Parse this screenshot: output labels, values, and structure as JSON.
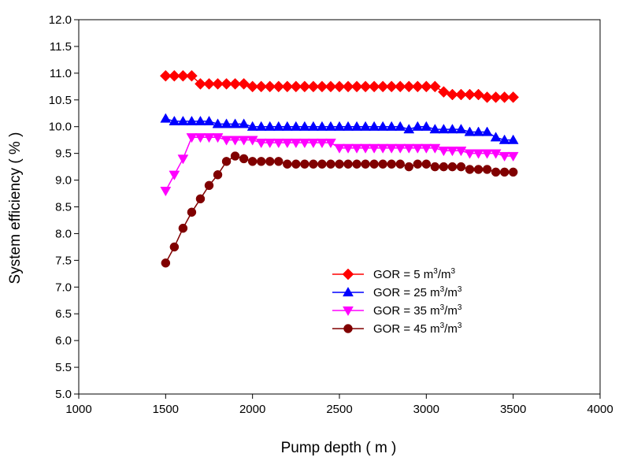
{
  "chart_data": {
    "type": "line",
    "xlabel": "Pump depth ( m )",
    "ylabel": "System efficiency ( % )",
    "xlim": [
      1000,
      4000
    ],
    "ylim": [
      5.0,
      12.0
    ],
    "xticks": [
      1000,
      1500,
      2000,
      2500,
      3000,
      3500,
      4000
    ],
    "yticks": [
      5.0,
      5.5,
      6.0,
      6.5,
      7.0,
      7.5,
      8.0,
      8.5,
      9.0,
      9.5,
      10.0,
      10.5,
      11.0,
      11.5,
      12.0
    ],
    "xtick_labels": [
      "1000",
      "1500",
      "2000",
      "2500",
      "3000",
      "3500",
      "4000"
    ],
    "ytick_labels": [
      "5.0",
      "5.5",
      "6.0",
      "6.5",
      "7.0",
      "7.5",
      "8.0",
      "8.5",
      "9.0",
      "9.5",
      "10.0",
      "10.5",
      "11.0",
      "11.5",
      "12.0"
    ],
    "grid": false,
    "legend_position": "lower-right",
    "x": [
      1500,
      1550,
      1600,
      1650,
      1700,
      1750,
      1800,
      1850,
      1900,
      1950,
      2000,
      2050,
      2100,
      2150,
      2200,
      2250,
      2300,
      2350,
      2400,
      2450,
      2500,
      2550,
      2600,
      2650,
      2700,
      2750,
      2800,
      2850,
      2900,
      2950,
      3000,
      3050,
      3100,
      3150,
      3200,
      3250,
      3300,
      3350,
      3400,
      3450,
      3500
    ],
    "series": [
      {
        "name": "GOR = 5 m3/m3",
        "legend_main": "GOR = 5 m",
        "legend_sup": "3",
        "legend_tail": "/m",
        "legend_sup2": "3",
        "color": "#ff0000",
        "marker": "diamond",
        "values": [
          10.95,
          10.95,
          10.95,
          10.95,
          10.8,
          10.8,
          10.8,
          10.8,
          10.8,
          10.8,
          10.75,
          10.75,
          10.75,
          10.75,
          10.75,
          10.75,
          10.75,
          10.75,
          10.75,
          10.75,
          10.75,
          10.75,
          10.75,
          10.75,
          10.75,
          10.75,
          10.75,
          10.75,
          10.75,
          10.75,
          10.75,
          10.75,
          10.65,
          10.6,
          10.6,
          10.6,
          10.6,
          10.55,
          10.55,
          10.55,
          10.55
        ]
      },
      {
        "name": "GOR = 25 m3/m3",
        "legend_main": "GOR = 25 m",
        "legend_sup": "3",
        "legend_tail": "/m",
        "legend_sup2": "3",
        "color": "#0000ff",
        "marker": "triangle-up",
        "values": [
          10.15,
          10.1,
          10.1,
          10.1,
          10.1,
          10.1,
          10.05,
          10.05,
          10.05,
          10.05,
          10.0,
          10.0,
          10.0,
          10.0,
          10.0,
          10.0,
          10.0,
          10.0,
          10.0,
          10.0,
          10.0,
          10.0,
          10.0,
          10.0,
          10.0,
          10.0,
          10.0,
          10.0,
          9.95,
          10.0,
          10.0,
          9.95,
          9.95,
          9.95,
          9.95,
          9.9,
          9.9,
          9.9,
          9.8,
          9.75,
          9.75
        ]
      },
      {
        "name": "GOR = 35 m3/m3",
        "legend_main": "GOR = 35 m",
        "legend_sup": "3",
        "legend_tail": "/m",
        "legend_sup2": "3",
        "color": "#ff00ff",
        "marker": "triangle-down",
        "values": [
          8.8,
          9.1,
          9.4,
          9.8,
          9.8,
          9.8,
          9.8,
          9.75,
          9.75,
          9.75,
          9.75,
          9.7,
          9.7,
          9.7,
          9.7,
          9.7,
          9.7,
          9.7,
          9.7,
          9.7,
          9.6,
          9.6,
          9.6,
          9.6,
          9.6,
          9.6,
          9.6,
          9.6,
          9.6,
          9.6,
          9.6,
          9.6,
          9.55,
          9.55,
          9.55,
          9.5,
          9.5,
          9.5,
          9.5,
          9.45,
          9.45
        ]
      },
      {
        "name": "GOR = 45 m3/m3",
        "legend_main": "GOR = 45 m",
        "legend_sup": "3",
        "legend_tail": "/m",
        "legend_sup2": "3",
        "color": "#800000",
        "marker": "circle",
        "values": [
          7.45,
          7.75,
          8.1,
          8.4,
          8.65,
          8.9,
          9.1,
          9.35,
          9.45,
          9.4,
          9.35,
          9.35,
          9.35,
          9.35,
          9.3,
          9.3,
          9.3,
          9.3,
          9.3,
          9.3,
          9.3,
          9.3,
          9.3,
          9.3,
          9.3,
          9.3,
          9.3,
          9.3,
          9.25,
          9.3,
          9.3,
          9.25,
          9.25,
          9.25,
          9.25,
          9.2,
          9.2,
          9.2,
          9.15,
          9.15,
          9.15
        ]
      }
    ]
  }
}
